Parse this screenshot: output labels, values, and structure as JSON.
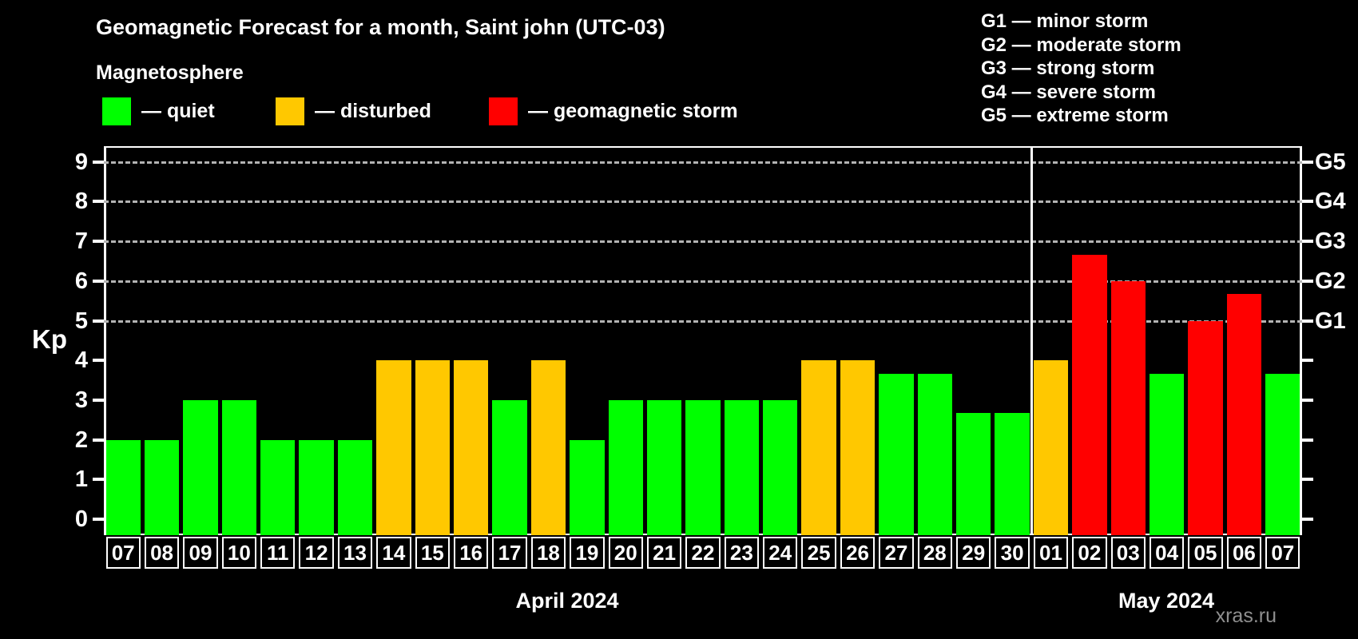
{
  "header": {
    "title": "Geomagnetic Forecast for a month, Saint john (UTC-03)",
    "subtitle": "Magnetosphere"
  },
  "legend": {
    "items": [
      {
        "key": "quiet",
        "label": "— quiet",
        "color": "#00ff00"
      },
      {
        "key": "disturbed",
        "label": "— disturbed",
        "color": "#ffc800"
      },
      {
        "key": "storm",
        "label": "— geomagnetic storm",
        "color": "#ff0000"
      }
    ]
  },
  "g_legend": {
    "items": [
      "G1 — minor storm",
      "G2 — moderate storm",
      "G3 — strong storm",
      "G4 — severe storm",
      "G5 — extreme storm"
    ]
  },
  "axes": {
    "y_label": "Kp",
    "y_ticks": [
      0,
      1,
      2,
      3,
      4,
      5,
      6,
      7,
      8,
      9
    ],
    "g_ticks": [
      {
        "kp": 5,
        "label": "G1"
      },
      {
        "kp": 6,
        "label": "G2"
      },
      {
        "kp": 7,
        "label": "G3"
      },
      {
        "kp": 8,
        "label": "G4"
      },
      {
        "kp": 9,
        "label": "G5"
      }
    ]
  },
  "colors": {
    "quiet": "#00ff00",
    "disturbed": "#ffc800",
    "storm": "#ff0000",
    "axis": "#ffffff",
    "grid": "#b3b3b3",
    "background": "#000000",
    "watermark": "#8f8f8f"
  },
  "footer": {
    "watermark": "xras.ru"
  },
  "chart_data": {
    "type": "bar",
    "title": "Geomagnetic Forecast for a month, Saint john (UTC-03)",
    "subtitle": "Magnetosphere",
    "xlabel": "",
    "ylabel": "Kp",
    "ylim": [
      0,
      9.4
    ],
    "grid": "dashed horizontal at Kp 5-9 (G1-G5 thresholds)",
    "legend_position": "top-left",
    "sections": [
      {
        "month_label": "April 2024",
        "days": [
          {
            "date": "07",
            "kp": 2,
            "status": "quiet"
          },
          {
            "date": "08",
            "kp": 2,
            "status": "quiet"
          },
          {
            "date": "09",
            "kp": 3,
            "status": "quiet"
          },
          {
            "date": "10",
            "kp": 3,
            "status": "quiet"
          },
          {
            "date": "11",
            "kp": 2,
            "status": "quiet"
          },
          {
            "date": "12",
            "kp": 2,
            "status": "quiet"
          },
          {
            "date": "13",
            "kp": 2,
            "status": "quiet"
          },
          {
            "date": "14",
            "kp": 4,
            "status": "disturbed"
          },
          {
            "date": "15",
            "kp": 4,
            "status": "disturbed"
          },
          {
            "date": "16",
            "kp": 4,
            "status": "disturbed"
          },
          {
            "date": "17",
            "kp": 3,
            "status": "quiet"
          },
          {
            "date": "18",
            "kp": 4,
            "status": "disturbed"
          },
          {
            "date": "19",
            "kp": 2,
            "status": "quiet"
          },
          {
            "date": "20",
            "kp": 3,
            "status": "quiet"
          },
          {
            "date": "21",
            "kp": 3,
            "status": "quiet"
          },
          {
            "date": "22",
            "kp": 3,
            "status": "quiet"
          },
          {
            "date": "23",
            "kp": 3,
            "status": "quiet"
          },
          {
            "date": "24",
            "kp": 3,
            "status": "quiet"
          },
          {
            "date": "25",
            "kp": 4,
            "status": "disturbed"
          },
          {
            "date": "26",
            "kp": 4,
            "status": "disturbed"
          },
          {
            "date": "27",
            "kp": 3.67,
            "status": "quiet"
          },
          {
            "date": "28",
            "kp": 3.67,
            "status": "quiet"
          },
          {
            "date": "29",
            "kp": 2.67,
            "status": "quiet"
          },
          {
            "date": "30",
            "kp": 2.67,
            "status": "quiet"
          }
        ]
      },
      {
        "month_label": "May 2024",
        "days": [
          {
            "date": "01",
            "kp": 4,
            "status": "disturbed"
          },
          {
            "date": "02",
            "kp": 6.67,
            "status": "storm"
          },
          {
            "date": "03",
            "kp": 6,
            "status": "storm"
          },
          {
            "date": "04",
            "kp": 3.67,
            "status": "quiet"
          },
          {
            "date": "05",
            "kp": 5,
            "status": "storm"
          },
          {
            "date": "06",
            "kp": 5.67,
            "status": "storm"
          },
          {
            "date": "07",
            "kp": 3.67,
            "status": "quiet"
          }
        ]
      }
    ]
  }
}
